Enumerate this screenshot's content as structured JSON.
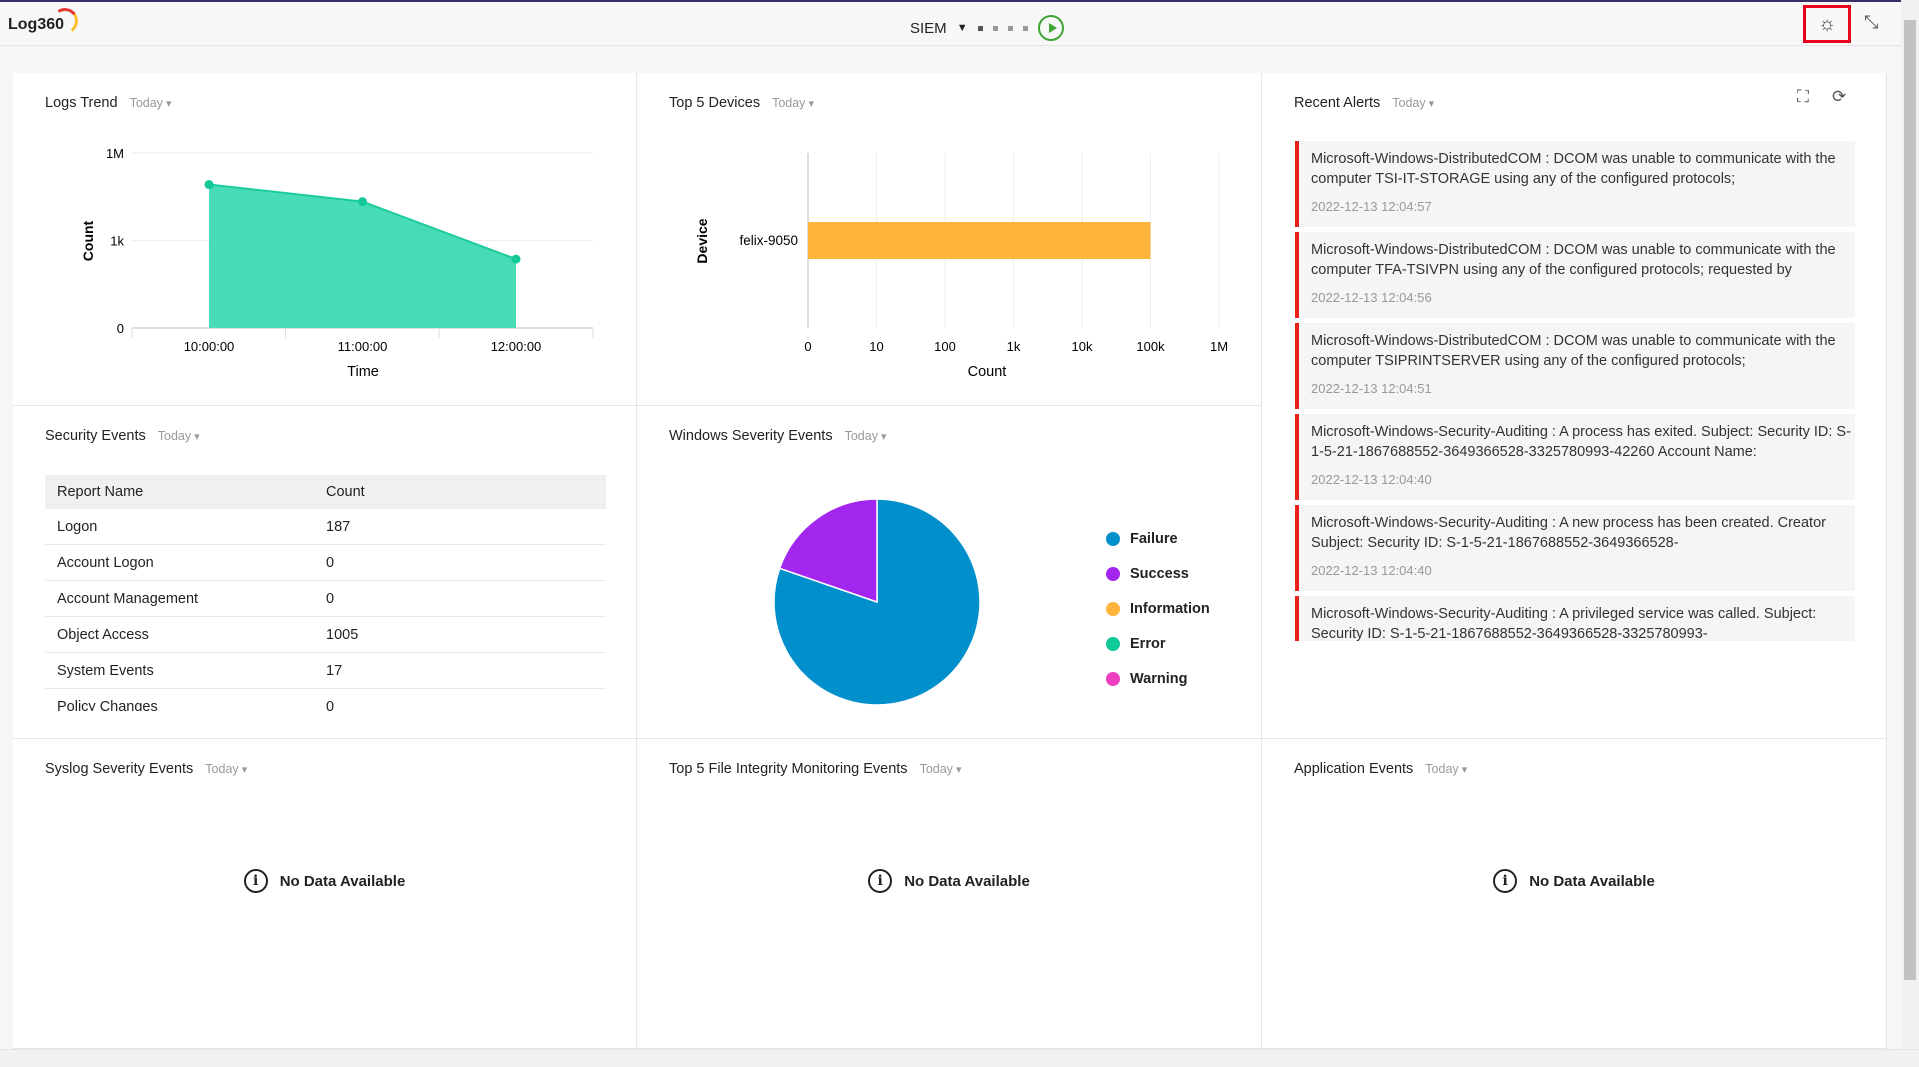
{
  "header": {
    "logo": "Log360",
    "module": "SIEM",
    "icons": [
      "play-icon",
      "theme-toggle-icon",
      "collapse-icon"
    ]
  },
  "range_label": "Today",
  "widgets": {
    "logs_trend": {
      "title": "Logs Trend",
      "range": "Today"
    },
    "top_devices": {
      "title": "Top 5 Devices",
      "range": "Today"
    },
    "recent_alerts": {
      "title": "Recent Alerts",
      "range": "Today",
      "alerts": [
        {
          "message": "Microsoft-Windows-DistributedCOM : DCOM was unable to communicate with the computer TSI-IT-STORAGE using any of the configured protocols;",
          "time": "2022-12-13 12:04:57"
        },
        {
          "message": "Microsoft-Windows-DistributedCOM : DCOM was unable to communicate with the computer TFA-TSIVPN using any of the configured protocols; requested by",
          "time": "2022-12-13 12:04:56"
        },
        {
          "message": "Microsoft-Windows-DistributedCOM : DCOM was unable to communicate with the computer TSIPRINTSERVER using any of the configured protocols;",
          "time": "2022-12-13 12:04:51"
        },
        {
          "message": "Microsoft-Windows-Security-Auditing : A process has exited. Subject: Security ID: S-1-5-21-1867688552-3649366528-3325780993-42260 Account Name:",
          "time": "2022-12-13 12:04:40"
        },
        {
          "message": "Microsoft-Windows-Security-Auditing : A new process has been created. Creator Subject: Security ID: S-1-5-21-1867688552-3649366528-",
          "time": "2022-12-13 12:04:40"
        },
        {
          "message": "Microsoft-Windows-Security-Auditing : A privileged service was called. Subject: Security ID: S-1-5-21-1867688552-3649366528-3325780993-",
          "time": ""
        }
      ]
    },
    "security_events": {
      "title": "Security Events",
      "range": "Today",
      "columns": [
        "Report Name",
        "Count"
      ],
      "rows": [
        [
          "Logon",
          "187"
        ],
        [
          "Account Logon",
          "0"
        ],
        [
          "Account Management",
          "0"
        ],
        [
          "Object Access",
          "1005"
        ],
        [
          "System Events",
          "17"
        ],
        [
          "Policy Changes",
          "0"
        ]
      ]
    },
    "windows_severity": {
      "title": "Windows Severity Events",
      "range": "Today"
    },
    "syslog_severity": {
      "title": "Syslog Severity Events",
      "range": "Today",
      "empty": "No Data Available"
    },
    "fim_events": {
      "title": "Top 5 File Integrity Monitoring Events",
      "range": "Today",
      "empty": "No Data Available"
    },
    "application_events": {
      "title": "Application Events",
      "range": "Today",
      "empty": "No Data Available"
    }
  },
  "chart_data": [
    {
      "type": "area",
      "xlabel": "Time",
      "ylabel": "Count",
      "scale": "log",
      "x": [
        "10:00:00",
        "11:00:00",
        "12:00:00"
      ],
      "values": [
        83000,
        21500,
        230
      ],
      "yticks": [
        "0",
        "1k",
        "1M"
      ],
      "color": "#48dbb8",
      "grid": true
    },
    {
      "type": "bar",
      "orientation": "horizontal",
      "xlabel": "Count",
      "ylabel": "Device",
      "scale": "log",
      "categories": [
        "felix-9050"
      ],
      "values": [
        100000
      ],
      "xticks": [
        "0",
        "10",
        "100",
        "1k",
        "10k",
        "100k",
        "1M"
      ],
      "color": "#ffb53c",
      "grid": true
    },
    {
      "type": "pie",
      "legend": "right",
      "slices": [
        {
          "name": "Failure",
          "value": 80.3,
          "color": "#0190cc"
        },
        {
          "name": "Success",
          "value": 19.7,
          "color": "#a326ee"
        },
        {
          "name": "Information",
          "value": 0,
          "color": "#ffb53c"
        },
        {
          "name": "Error",
          "value": 0,
          "color": "#10c99a"
        },
        {
          "name": "Warning",
          "value": 0,
          "color": "#ef3fc0"
        }
      ]
    }
  ]
}
